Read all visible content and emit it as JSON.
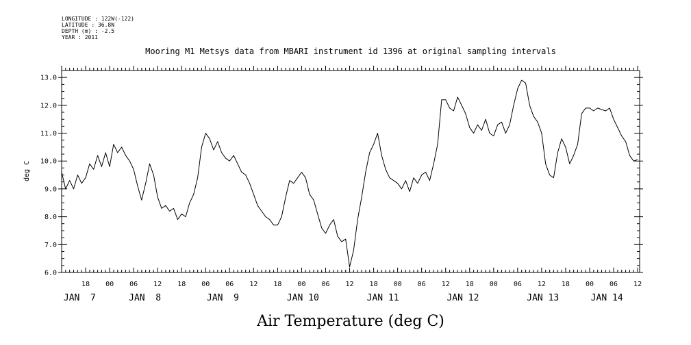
{
  "header": {
    "longitude": "LONGITUDE : 122W(-122)",
    "latitude": "LATITUDE : 36.8N",
    "depth": "DEPTH (m) : -2.5",
    "year": "YEAR : 2011"
  },
  "chart_data": {
    "type": "line",
    "title": "Mooring M1 Metsys data from MBARI instrument id 1396 at original sampling intervals",
    "caption": "Air Temperature (deg C)",
    "ylabel": "deg C",
    "ylim": [
      6.0,
      13.25
    ],
    "yticks": [
      "6.0",
      "7.0",
      "8.0",
      "9.0",
      "10.0",
      "11.0",
      "12.0",
      "13.0"
    ],
    "x_unit": "hours from Jan 6 2011 00:00",
    "xlim": [
      12,
      156.5
    ],
    "hour_ticks": [
      {
        "h": 18,
        "label": "18"
      },
      {
        "h": 24,
        "label": "00"
      },
      {
        "h": 30,
        "label": "06"
      },
      {
        "h": 36,
        "label": "12"
      },
      {
        "h": 42,
        "label": "18"
      },
      {
        "h": 48,
        "label": "00"
      },
      {
        "h": 54,
        "label": "06"
      },
      {
        "h": 60,
        "label": "12"
      },
      {
        "h": 66,
        "label": "18"
      },
      {
        "h": 72,
        "label": "00"
      },
      {
        "h": 78,
        "label": "06"
      },
      {
        "h": 84,
        "label": "12"
      },
      {
        "h": 90,
        "label": "18"
      },
      {
        "h": 96,
        "label": "00"
      },
      {
        "h": 102,
        "label": "06"
      },
      {
        "h": 108,
        "label": "12"
      },
      {
        "h": 114,
        "label": "18"
      },
      {
        "h": 120,
        "label": "00"
      },
      {
        "h": 126,
        "label": "06"
      },
      {
        "h": 132,
        "label": "12"
      },
      {
        "h": 138,
        "label": "18"
      },
      {
        "h": 144,
        "label": "00"
      },
      {
        "h": 150,
        "label": "06"
      },
      {
        "h": 156,
        "label": "12"
      }
    ],
    "day_labels": [
      {
        "h": 12.5,
        "label": "JAN  7"
      },
      {
        "h": 28.8,
        "label": "JAN  8"
      },
      {
        "h": 48.3,
        "label": "JAN  9"
      },
      {
        "h": 68.3,
        "label": "JAN 10"
      },
      {
        "h": 88.3,
        "label": "JAN 11"
      },
      {
        "h": 108.3,
        "label": "JAN 12"
      },
      {
        "h": 128.3,
        "label": "JAN 13"
      },
      {
        "h": 144.3,
        "label": "JAN 14"
      }
    ],
    "series": [
      {
        "color": "#000000",
        "points": [
          [
            12,
            9.6
          ],
          [
            13,
            9.0
          ],
          [
            14,
            9.3
          ],
          [
            15,
            9.0
          ],
          [
            16,
            9.5
          ],
          [
            17,
            9.2
          ],
          [
            18,
            9.4
          ],
          [
            19,
            9.9
          ],
          [
            20,
            9.7
          ],
          [
            21,
            10.2
          ],
          [
            22,
            9.8
          ],
          [
            23,
            10.3
          ],
          [
            24,
            9.8
          ],
          [
            25,
            10.6
          ],
          [
            26,
            10.3
          ],
          [
            27,
            10.5
          ],
          [
            28,
            10.2
          ],
          [
            29,
            10.0
          ],
          [
            30,
            9.7
          ],
          [
            31,
            9.1
          ],
          [
            32,
            8.6
          ],
          [
            33,
            9.2
          ],
          [
            34,
            9.9
          ],
          [
            35,
            9.5
          ],
          [
            36,
            8.7
          ],
          [
            37,
            8.3
          ],
          [
            38,
            8.4
          ],
          [
            39,
            8.2
          ],
          [
            40,
            8.3
          ],
          [
            41,
            7.9
          ],
          [
            42,
            8.1
          ],
          [
            43,
            8.0
          ],
          [
            44,
            8.5
          ],
          [
            45,
            8.8
          ],
          [
            46,
            9.4
          ],
          [
            47,
            10.5
          ],
          [
            48,
            11.0
          ],
          [
            49,
            10.8
          ],
          [
            50,
            10.4
          ],
          [
            51,
            10.7
          ],
          [
            52,
            10.3
          ],
          [
            53,
            10.1
          ],
          [
            54,
            10.0
          ],
          [
            55,
            10.2
          ],
          [
            56,
            9.9
          ],
          [
            57,
            9.6
          ],
          [
            58,
            9.5
          ],
          [
            59,
            9.2
          ],
          [
            60,
            8.8
          ],
          [
            61,
            8.4
          ],
          [
            62,
            8.2
          ],
          [
            63,
            8.0
          ],
          [
            64,
            7.9
          ],
          [
            65,
            7.7
          ],
          [
            66,
            7.7
          ],
          [
            67,
            8.0
          ],
          [
            68,
            8.7
          ],
          [
            69,
            9.3
          ],
          [
            70,
            9.2
          ],
          [
            71,
            9.4
          ],
          [
            72,
            9.6
          ],
          [
            73,
            9.4
          ],
          [
            74,
            8.8
          ],
          [
            75,
            8.6
          ],
          [
            76,
            8.1
          ],
          [
            77,
            7.6
          ],
          [
            78,
            7.4
          ],
          [
            79,
            7.7
          ],
          [
            80,
            7.9
          ],
          [
            81,
            7.3
          ],
          [
            82,
            7.1
          ],
          [
            83,
            7.2
          ],
          [
            84,
            6.2
          ],
          [
            85,
            6.8
          ],
          [
            86,
            7.9
          ],
          [
            87,
            8.7
          ],
          [
            88,
            9.6
          ],
          [
            89,
            10.3
          ],
          [
            90,
            10.6
          ],
          [
            91,
            11.0
          ],
          [
            92,
            10.2
          ],
          [
            93,
            9.7
          ],
          [
            94,
            9.4
          ],
          [
            95,
            9.3
          ],
          [
            96,
            9.2
          ],
          [
            97,
            9.0
          ],
          [
            98,
            9.3
          ],
          [
            99,
            8.9
          ],
          [
            100,
            9.4
          ],
          [
            101,
            9.2
          ],
          [
            102,
            9.5
          ],
          [
            103,
            9.6
          ],
          [
            104,
            9.3
          ],
          [
            105,
            9.9
          ],
          [
            106,
            10.6
          ],
          [
            107,
            12.2
          ],
          [
            108,
            12.2
          ],
          [
            109,
            11.9
          ],
          [
            110,
            11.8
          ],
          [
            111,
            12.3
          ],
          [
            112,
            12.0
          ],
          [
            113,
            11.7
          ],
          [
            114,
            11.2
          ],
          [
            115,
            11.0
          ],
          [
            116,
            11.3
          ],
          [
            117,
            11.1
          ],
          [
            118,
            11.5
          ],
          [
            119,
            11.0
          ],
          [
            120,
            10.9
          ],
          [
            121,
            11.3
          ],
          [
            122,
            11.4
          ],
          [
            123,
            11.0
          ],
          [
            124,
            11.3
          ],
          [
            125,
            12.0
          ],
          [
            126,
            12.6
          ],
          [
            127,
            12.9
          ],
          [
            128,
            12.8
          ],
          [
            129,
            12.0
          ],
          [
            130,
            11.6
          ],
          [
            131,
            11.4
          ],
          [
            132,
            11.0
          ],
          [
            133,
            9.9
          ],
          [
            134,
            9.5
          ],
          [
            135,
            9.4
          ],
          [
            136,
            10.3
          ],
          [
            137,
            10.8
          ],
          [
            138,
            10.5
          ],
          [
            139,
            9.9
          ],
          [
            140,
            10.2
          ],
          [
            141,
            10.6
          ],
          [
            142,
            11.7
          ],
          [
            143,
            11.9
          ],
          [
            144,
            11.9
          ],
          [
            145,
            11.8
          ],
          [
            146,
            11.9
          ],
          [
            147,
            11.85
          ],
          [
            148,
            11.8
          ],
          [
            149,
            11.9
          ],
          [
            150,
            11.5
          ],
          [
            151,
            11.2
          ],
          [
            152,
            10.9
          ],
          [
            153,
            10.7
          ],
          [
            154,
            10.2
          ],
          [
            155,
            10.0
          ],
          [
            156,
            10.05
          ]
        ]
      }
    ]
  }
}
